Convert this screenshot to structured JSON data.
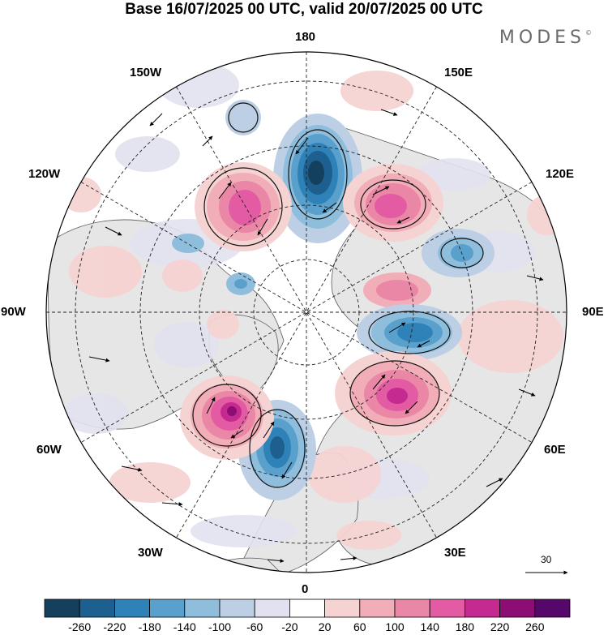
{
  "header": {
    "title": "Base 16/07/2025 00 UTC, valid 20/07/2025 00 UTC",
    "brand": "MODES",
    "brand_mark": "©"
  },
  "map": {
    "projection": "north-polar-stereographic",
    "longitude_labels": {
      "top": "180",
      "bottom": "0",
      "left": "90W",
      "right": "90E",
      "upper_left_1": "150W",
      "upper_left_2": "120W",
      "upper_right_1": "150E",
      "upper_right_2": "120E",
      "lower_left_1": "60W",
      "lower_left_2": "30W",
      "lower_right_1": "60E",
      "lower_right_2": "30E"
    },
    "vector_scale_label": "30",
    "anomaly_centers": [
      {
        "lon_sector": "180",
        "sign": "negative",
        "strength": 260
      },
      {
        "lon_sector": "150W-120W",
        "sign": "positive",
        "strength": 180
      },
      {
        "lon_sector": "150E-120E",
        "sign": "positive",
        "strength": 180
      },
      {
        "lon_sector": "120E-90E",
        "sign": "negative",
        "strength": 140
      },
      {
        "lon_sector": "90E",
        "sign": "positive",
        "strength": 100
      },
      {
        "lon_sector": "90E-60E",
        "sign": "negative",
        "strength": 180
      },
      {
        "lon_sector": "60E-30E",
        "sign": "positive",
        "strength": 220
      },
      {
        "lon_sector": "30W-0",
        "sign": "negative",
        "strength": 220
      },
      {
        "lon_sector": "60W-30W",
        "sign": "positive",
        "strength": 260
      }
    ]
  },
  "colorbar": {
    "colors": [
      "#14405e",
      "#1d6090",
      "#2f82b8",
      "#5aa0cc",
      "#8fbedd",
      "#bccfe4",
      "#e2e1ef",
      "#ffffff",
      "#f6d3d3",
      "#f1adb8",
      "#ea86a6",
      "#e25ba3",
      "#c42a8f",
      "#8c0d74",
      "#55086a"
    ],
    "labels": [
      "-260",
      "-220",
      "-180",
      "-140",
      "-100",
      "-60",
      "-20",
      "20",
      "60",
      "100",
      "140",
      "180",
      "220",
      "260"
    ]
  }
}
